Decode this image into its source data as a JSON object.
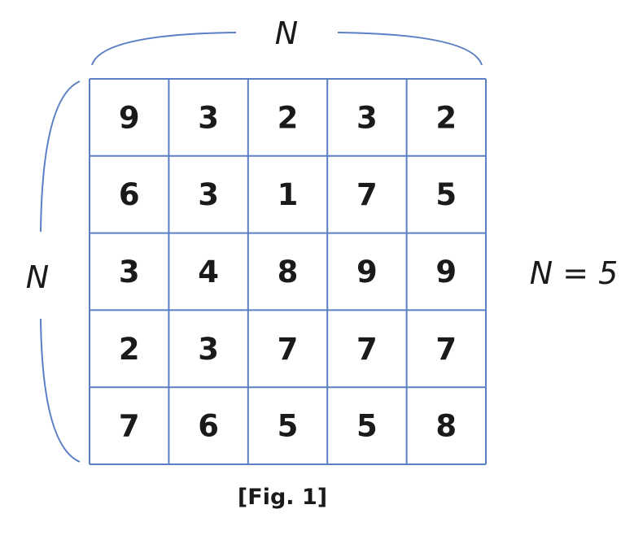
{
  "figure": {
    "top_label": "N",
    "left_label": "N",
    "size_label": "N = 5",
    "caption": "[Fig. 1]"
  },
  "grid": {
    "rows": [
      [
        "9",
        "3",
        "2",
        "3",
        "2"
      ],
      [
        "6",
        "3",
        "1",
        "7",
        "5"
      ],
      [
        "3",
        "4",
        "8",
        "9",
        "9"
      ],
      [
        "2",
        "3",
        "7",
        "7",
        "7"
      ],
      [
        "7",
        "6",
        "5",
        "5",
        "8"
      ]
    ]
  },
  "colors": {
    "line": "#5b7fc4",
    "text": "#1a1a1a"
  }
}
